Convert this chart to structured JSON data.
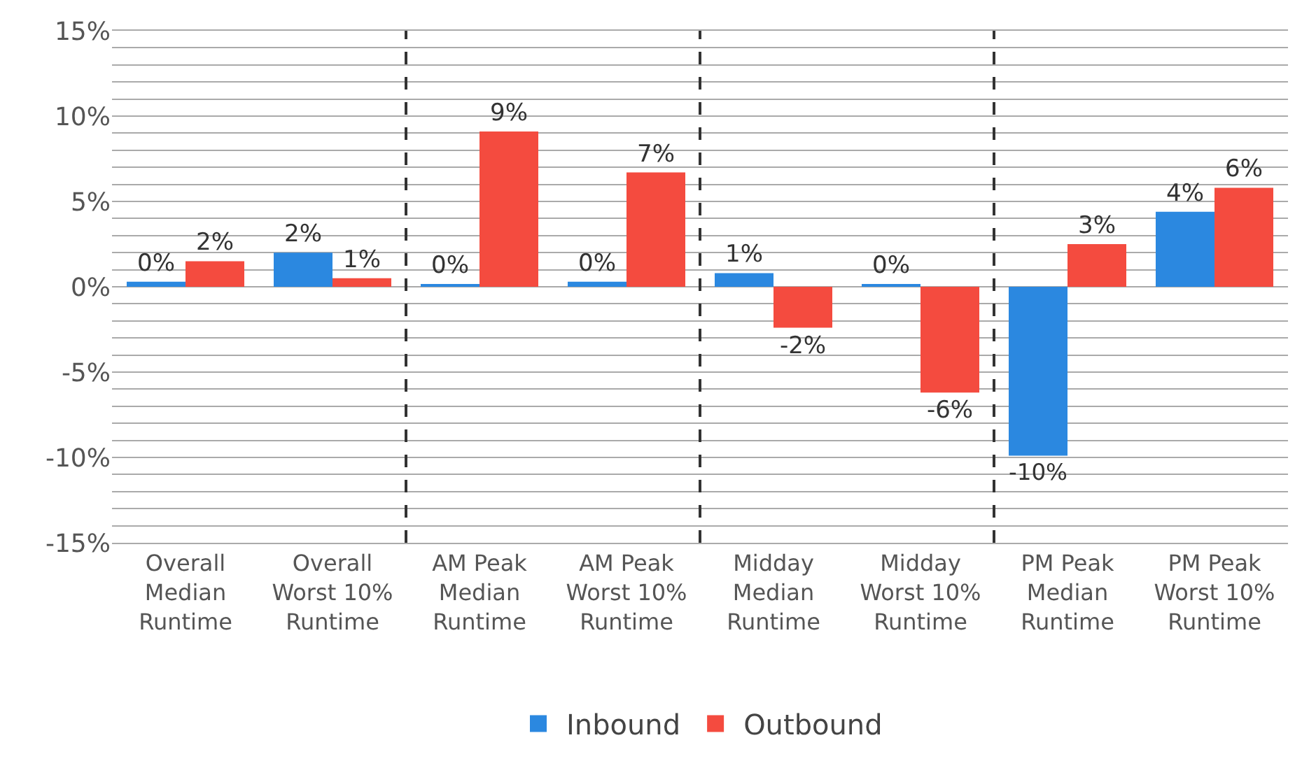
{
  "chart_data": {
    "type": "bar",
    "categories": [
      "Overall\nMedian\nRuntime",
      "Overall\nWorst 10%\nRuntime",
      "AM Peak\nMedian\nRuntime",
      "AM Peak\nWorst 10%\nRuntime",
      "Midday\nMedian\nRuntime",
      "Midday\nWorst 10%\nRuntime",
      "PM Peak\nMedian\nRuntime",
      "PM Peak\nWorst 10%\nRuntime"
    ],
    "series": [
      {
        "name": "Inbound",
        "color": "#2b88e0",
        "values": [
          0.3,
          2.0,
          0.1,
          0.3,
          0.8,
          0.1,
          -9.9,
          4.4
        ],
        "value_labels": [
          "0%",
          "2%",
          "0%",
          "0%",
          "1%",
          "0%",
          "-10%",
          "4%"
        ]
      },
      {
        "name": "Outbound",
        "color": "#f44b3f",
        "values": [
          1.5,
          0.5,
          9.1,
          6.7,
          -2.4,
          -6.2,
          2.5,
          5.8
        ],
        "value_labels": [
          "2%",
          "1%",
          "9%",
          "7%",
          "-2%",
          "-6%",
          "3%",
          "6%"
        ]
      }
    ],
    "ylim": [
      -15,
      15
    ],
    "yticks": [
      {
        "value": -15,
        "label": "-15%"
      },
      {
        "value": -14,
        "label": null
      },
      {
        "value": -13,
        "label": null
      },
      {
        "value": -12,
        "label": null
      },
      {
        "value": -11,
        "label": null
      },
      {
        "value": -10,
        "label": "-10%"
      },
      {
        "value": -9,
        "label": null
      },
      {
        "value": -8,
        "label": null
      },
      {
        "value": -7,
        "label": null
      },
      {
        "value": -6,
        "label": null
      },
      {
        "value": -5,
        "label": "-5%"
      },
      {
        "value": -4,
        "label": null
      },
      {
        "value": -3,
        "label": null
      },
      {
        "value": -2,
        "label": null
      },
      {
        "value": -1,
        "label": null
      },
      {
        "value": 0,
        "label": "0%"
      },
      {
        "value": 1,
        "label": null
      },
      {
        "value": 2,
        "label": null
      },
      {
        "value": 3,
        "label": null
      },
      {
        "value": 4,
        "label": null
      },
      {
        "value": 5,
        "label": "5%"
      },
      {
        "value": 6,
        "label": null
      },
      {
        "value": 7,
        "label": null
      },
      {
        "value": 8,
        "label": null
      },
      {
        "value": 9,
        "label": null
      },
      {
        "value": 10,
        "label": "10%"
      },
      {
        "value": 11,
        "label": null
      },
      {
        "value": 12,
        "label": null
      },
      {
        "value": 13,
        "label": null
      },
      {
        "value": 14,
        "label": null
      },
      {
        "value": 15,
        "label": "15%"
      }
    ],
    "grid": "y",
    "legend": "bottom"
  }
}
